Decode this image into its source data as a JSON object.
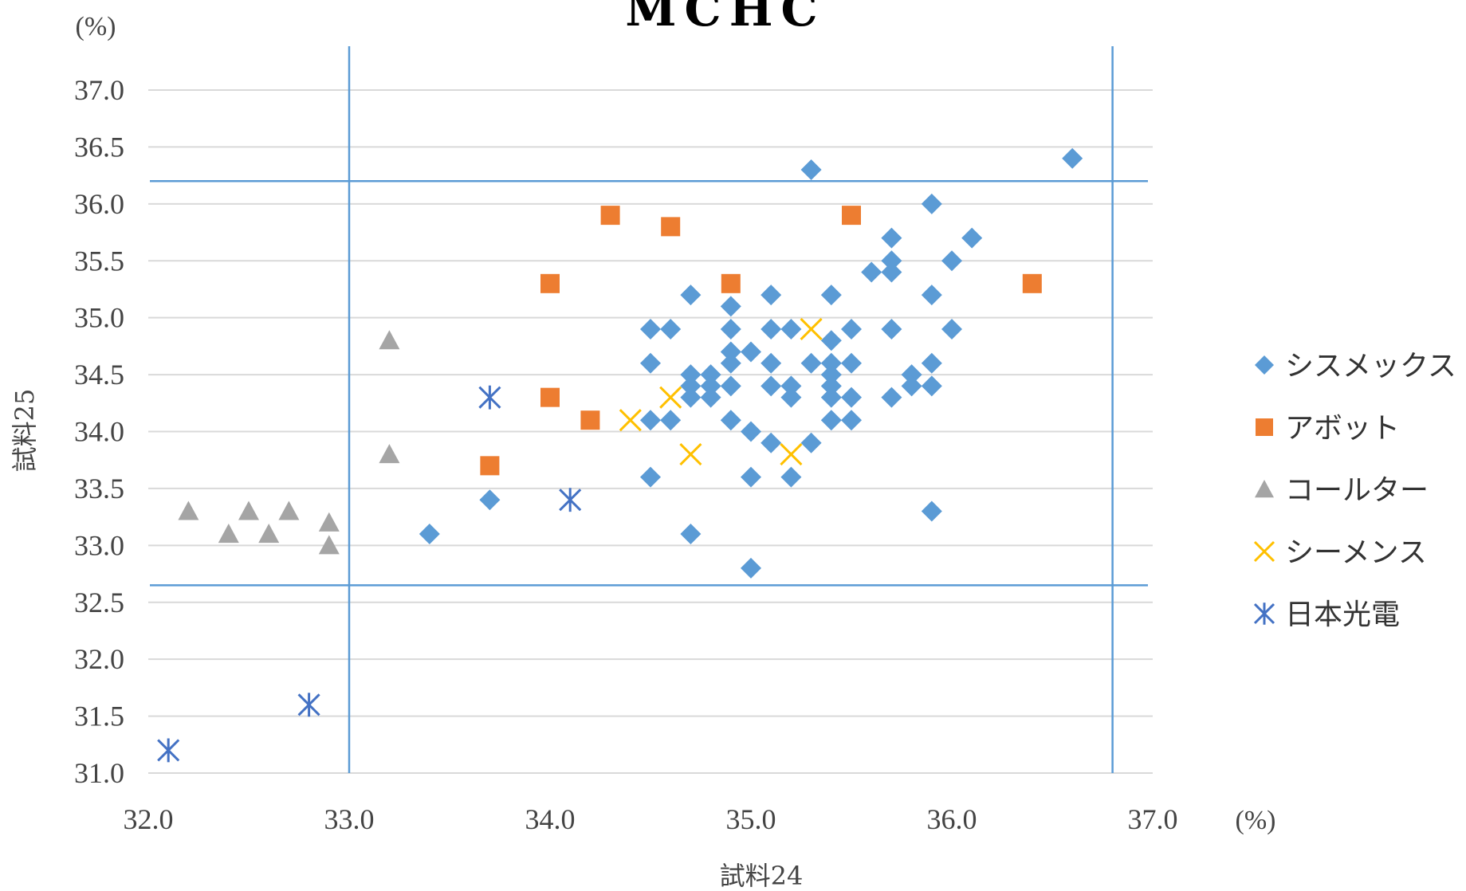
{
  "chart_data": {
    "type": "scatter",
    "title": "MCHC",
    "xlabel": "試料24",
    "ylabel": "試料25",
    "x_unit": "(%)",
    "y_unit": "(%)",
    "xlim": [
      32.0,
      37.0
    ],
    "ylim": [
      31.0,
      37.0
    ],
    "x_ticks": [
      "32.0",
      "33.0",
      "34.0",
      "35.0",
      "36.0",
      "37.0"
    ],
    "y_ticks": [
      "31.0",
      "31.5",
      "32.0",
      "32.5",
      "33.0",
      "33.5",
      "34.0",
      "34.5",
      "35.0",
      "35.5",
      "36.0",
      "36.5",
      "37.0"
    ],
    "grid": "horizontal",
    "legend_position": "right",
    "reference_lines": {
      "vertical": [
        33.0,
        36.8
      ],
      "horizontal": [
        32.65,
        36.2
      ]
    },
    "series": [
      {
        "name": "シスメックス",
        "marker": "diamond",
        "color": "#5b9bd5",
        "points": [
          [
            33.4,
            33.1
          ],
          [
            33.7,
            33.4
          ],
          [
            34.5,
            34.9
          ],
          [
            34.5,
            34.6
          ],
          [
            34.5,
            34.1
          ],
          [
            34.5,
            33.6
          ],
          [
            34.6,
            34.9
          ],
          [
            34.6,
            34.1
          ],
          [
            34.7,
            35.2
          ],
          [
            34.7,
            34.5
          ],
          [
            34.7,
            34.4
          ],
          [
            34.7,
            34.3
          ],
          [
            34.7,
            33.1
          ],
          [
            34.8,
            34.5
          ],
          [
            34.8,
            34.4
          ],
          [
            34.8,
            34.3
          ],
          [
            34.9,
            35.1
          ],
          [
            34.9,
            34.9
          ],
          [
            34.9,
            34.7
          ],
          [
            34.9,
            34.6
          ],
          [
            34.9,
            34.4
          ],
          [
            34.9,
            34.1
          ],
          [
            35.0,
            34.7
          ],
          [
            35.0,
            34.0
          ],
          [
            35.0,
            33.6
          ],
          [
            35.0,
            32.8
          ],
          [
            35.1,
            35.2
          ],
          [
            35.1,
            34.9
          ],
          [
            35.1,
            34.6
          ],
          [
            35.1,
            34.4
          ],
          [
            35.1,
            33.9
          ],
          [
            35.2,
            34.9
          ],
          [
            35.2,
            34.4
          ],
          [
            35.2,
            34.3
          ],
          [
            35.2,
            33.6
          ],
          [
            35.3,
            36.3
          ],
          [
            35.3,
            34.6
          ],
          [
            35.3,
            33.9
          ],
          [
            35.4,
            35.2
          ],
          [
            35.4,
            34.8
          ],
          [
            35.4,
            34.6
          ],
          [
            35.4,
            34.5
          ],
          [
            35.4,
            34.4
          ],
          [
            35.4,
            34.3
          ],
          [
            35.4,
            34.1
          ],
          [
            35.5,
            34.9
          ],
          [
            35.5,
            34.6
          ],
          [
            35.5,
            34.3
          ],
          [
            35.5,
            34.1
          ],
          [
            35.6,
            35.4
          ],
          [
            35.7,
            35.7
          ],
          [
            35.7,
            35.5
          ],
          [
            35.7,
            35.4
          ],
          [
            35.7,
            34.9
          ],
          [
            35.7,
            34.3
          ],
          [
            35.8,
            34.5
          ],
          [
            35.8,
            34.4
          ],
          [
            35.9,
            36.0
          ],
          [
            35.9,
            35.2
          ],
          [
            35.9,
            34.6
          ],
          [
            35.9,
            34.4
          ],
          [
            35.9,
            33.3
          ],
          [
            36.0,
            35.5
          ],
          [
            36.0,
            34.9
          ],
          [
            36.1,
            35.7
          ],
          [
            36.6,
            36.4
          ]
        ]
      },
      {
        "name": "アボット",
        "marker": "square",
        "color": "#ed7d31",
        "points": [
          [
            33.7,
            33.7
          ],
          [
            34.0,
            35.3
          ],
          [
            34.0,
            34.3
          ],
          [
            34.2,
            34.1
          ],
          [
            34.3,
            35.9
          ],
          [
            34.6,
            35.8
          ],
          [
            34.9,
            35.3
          ],
          [
            35.5,
            35.9
          ],
          [
            36.4,
            35.3
          ]
        ]
      },
      {
        "name": "コールター",
        "marker": "triangle",
        "color": "#a5a5a5",
        "points": [
          [
            32.2,
            33.3
          ],
          [
            32.4,
            33.1
          ],
          [
            32.5,
            33.3
          ],
          [
            32.6,
            33.1
          ],
          [
            32.7,
            33.3
          ],
          [
            32.9,
            33.2
          ],
          [
            32.9,
            33.0
          ],
          [
            33.2,
            34.8
          ],
          [
            33.2,
            33.8
          ]
        ]
      },
      {
        "name": "シーメンス",
        "marker": "x",
        "color": "#ffc000",
        "points": [
          [
            34.4,
            34.1
          ],
          [
            34.6,
            34.3
          ],
          [
            34.7,
            33.8
          ],
          [
            35.2,
            33.8
          ],
          [
            35.3,
            34.9
          ]
        ]
      },
      {
        "name": "日本光電",
        "marker": "asterisk",
        "color": "#4472c4",
        "points": [
          [
            32.1,
            31.2
          ],
          [
            32.8,
            31.6
          ],
          [
            33.7,
            34.3
          ],
          [
            34.1,
            33.4
          ]
        ]
      }
    ]
  }
}
